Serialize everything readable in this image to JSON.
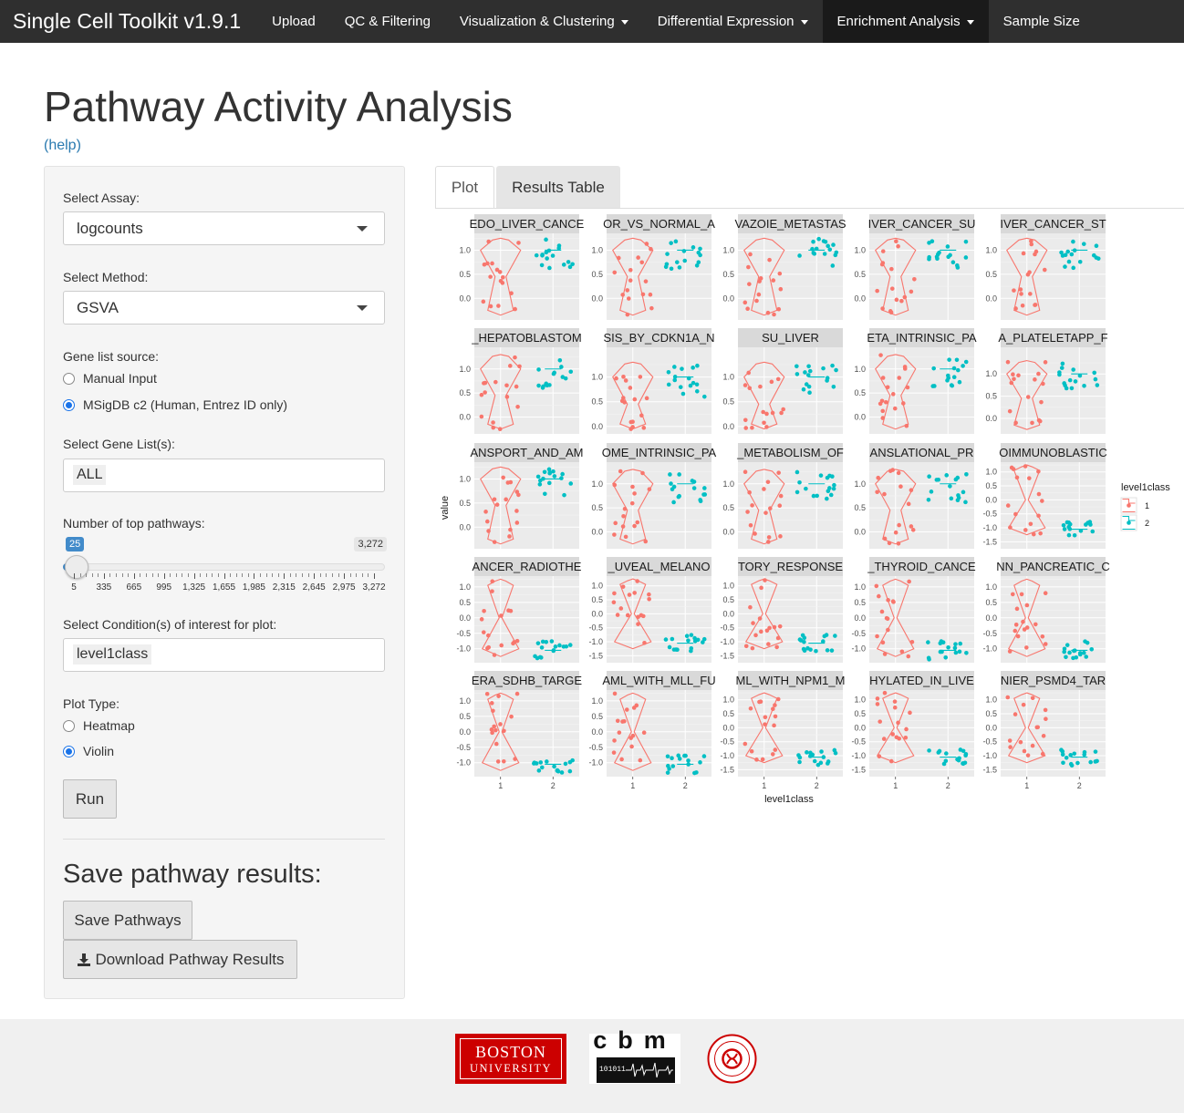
{
  "app": {
    "brand": "Single Cell Toolkit v1.9.1",
    "nav": [
      {
        "label": "Upload",
        "dropdown": false,
        "active": false
      },
      {
        "label": "QC & Filtering",
        "dropdown": false,
        "active": false
      },
      {
        "label": "Visualization & Clustering",
        "dropdown": true,
        "active": false
      },
      {
        "label": "Differential Expression",
        "dropdown": true,
        "active": false
      },
      {
        "label": "Enrichment Analysis",
        "dropdown": true,
        "active": true
      },
      {
        "label": "Sample Size",
        "dropdown": false,
        "active": false
      }
    ]
  },
  "page": {
    "title": "Pathway Activity Analysis",
    "help": "(help)"
  },
  "sidebar": {
    "assay_label": "Select Assay:",
    "assay_value": "logcounts",
    "method_label": "Select Method:",
    "method_value": "GSVA",
    "gene_source_label": "Gene list source:",
    "gene_source_options": [
      "Manual Input",
      "MSigDB c2 (Human, Entrez ID only)"
    ],
    "gene_source_selected": 1,
    "gene_list_label": "Select Gene List(s):",
    "gene_list_value": "ALL",
    "top_label": "Number of top pathways:",
    "slider": {
      "min_badge": "25",
      "max_badge": "3,272",
      "value": 25,
      "min": 5,
      "max": 3272,
      "ticks": [
        "5",
        "335",
        "665",
        "995",
        "1,325",
        "1,655",
        "1,985",
        "2,315",
        "2,645",
        "2,975",
        "3,272"
      ]
    },
    "condition_label": "Select Condition(s) of interest for plot:",
    "condition_value": "level1class",
    "plot_type_label": "Plot Type:",
    "plot_type_options": [
      "Heatmap",
      "Violin"
    ],
    "plot_type_selected": 1,
    "run_button": "Run",
    "save_heading": "Save pathway results:",
    "save_button": "Save Pathways",
    "download_button": "Download Pathway Results"
  },
  "tabs": [
    {
      "label": "Plot",
      "active": true
    },
    {
      "label": "Results Table",
      "active": false
    }
  ],
  "chart_data": {
    "type": "violin",
    "xlabel": "level1class",
    "ylabel": "value",
    "x_categories": [
      "1",
      "2"
    ],
    "legend": {
      "title": "level1class",
      "entries": [
        "1",
        "2"
      ],
      "position": "right"
    },
    "series_colors": {
      "1": "#f8766d",
      "2": "#00bfc4"
    },
    "facets": [
      {
        "strip": "EDO_LIVER_CANCE",
        "yticks": [
          "1.0",
          "0.5",
          "0.0"
        ],
        "ylim": [
          -0.45,
          1.35
        ]
      },
      {
        "strip": "OR_VS_NORMAL_A",
        "yticks": [
          "1.0",
          "0.5",
          "0.0"
        ],
        "ylim": [
          -0.45,
          1.35
        ]
      },
      {
        "strip": "VAZOIE_METASTAS",
        "yticks": [
          "1.0",
          "0.5",
          "0.0"
        ],
        "ylim": [
          -0.45,
          1.35
        ]
      },
      {
        "strip": "IVER_CANCER_SU",
        "yticks": [
          "1.0",
          "0.5",
          "0.0"
        ],
        "ylim": [
          -0.45,
          1.35
        ]
      },
      {
        "strip": "IVER_CANCER_ST",
        "yticks": [
          "1.0",
          "0.5",
          "0.0"
        ],
        "ylim": [
          -0.45,
          1.35
        ]
      },
      {
        "strip": "_HEPATOBLASTOM",
        "yticks": [
          "1.0",
          "0.5",
          "0.0"
        ],
        "ylim": [
          -0.35,
          1.45
        ]
      },
      {
        "strip": "SIS_BY_CDKN1A_N",
        "yticks": [
          "1.0",
          "0.5",
          "0.0"
        ],
        "ylim": [
          -0.15,
          1.6
        ]
      },
      {
        "strip": "SU_LIVER",
        "yticks": [
          "1.0",
          "0.5",
          "0.0"
        ],
        "ylim": [
          -0.15,
          1.6
        ]
      },
      {
        "strip": "ETA_INTRINSIC_PA",
        "yticks": [
          "1.0",
          "0.5",
          "0.0"
        ],
        "ylim": [
          -0.35,
          1.45
        ]
      },
      {
        "strip": "A_PLATELETAPP_F",
        "yticks": [
          "1.0",
          "0.5",
          "0.0"
        ],
        "ylim": [
          -0.35,
          1.6
        ]
      },
      {
        "strip": "ANSPORT_AND_AM",
        "yticks": [
          "1.0",
          "0.5",
          "0.0"
        ],
        "ylim": [
          -0.45,
          1.35
        ]
      },
      {
        "strip": "OME_INTRINSIC_PA",
        "yticks": [
          "1.0",
          "0.5",
          "0.0"
        ],
        "ylim": [
          -0.35,
          1.45
        ]
      },
      {
        "strip": "_METABOLISM_OF",
        "yticks": [
          "1.0",
          "0.5",
          "0.0"
        ],
        "ylim": [
          -0.35,
          1.45
        ]
      },
      {
        "strip": "ANSLATIONAL_PR",
        "yticks": [
          "1.0",
          "0.5",
          "0.0"
        ],
        "ylim": [
          -0.35,
          1.45
        ]
      },
      {
        "strip": "OIMMUNOBLASTIC",
        "yticks": [
          "1.0",
          "0.5",
          "0.0",
          "-0.5",
          "-1.0",
          "-1.5"
        ],
        "ylim": [
          -1.75,
          1.35
        ]
      },
      {
        "strip": "ANCER_RADIOTHE",
        "yticks": [
          "1.0",
          "0.5",
          "0.0",
          "-0.5",
          "-1.0"
        ],
        "ylim": [
          -1.45,
          1.35
        ]
      },
      {
        "strip": "_UVEAL_MELANO",
        "yticks": [
          "1.0",
          "0.5",
          "0.0",
          "-0.5",
          "-1.0",
          "-1.5"
        ],
        "ylim": [
          -1.75,
          1.35
        ]
      },
      {
        "strip": "TORY_RESPONSE",
        "yticks": [
          "1.0",
          "0.5",
          "0.0",
          "-0.5",
          "-1.0",
          "-1.5"
        ],
        "ylim": [
          -1.75,
          1.35
        ]
      },
      {
        "strip": "_THYROID_CANCE",
        "yticks": [
          "1.0",
          "0.5",
          "0.0",
          "-0.5",
          "-1.0"
        ],
        "ylim": [
          -1.45,
          1.35
        ]
      },
      {
        "strip": "NN_PANCREATIC_C",
        "yticks": [
          "1.0",
          "0.5",
          "0.0",
          "-0.5",
          "-1.0"
        ],
        "ylim": [
          -1.45,
          1.35
        ]
      },
      {
        "strip": "ERA_SDHB_TARGE",
        "yticks": [
          "1.0",
          "0.5",
          "0.0",
          "-0.5",
          "-1.0"
        ],
        "ylim": [
          -1.45,
          1.35
        ]
      },
      {
        "strip": "AML_WITH_MLL_FU",
        "yticks": [
          "1.0",
          "0.5",
          "0.0",
          "-0.5",
          "-1.0"
        ],
        "ylim": [
          -1.45,
          1.35
        ]
      },
      {
        "strip": "ML_WITH_NPM1_M",
        "yticks": [
          "1.0",
          "0.5",
          "0.0",
          "-0.5",
          "-1.0",
          "-1.5"
        ],
        "ylim": [
          -1.75,
          1.35
        ]
      },
      {
        "strip": "HYLATED_IN_LIVE",
        "yticks": [
          "1.0",
          "0.5",
          "0.0",
          "-0.5",
          "-1.0",
          "-1.5"
        ],
        "ylim": [
          -1.75,
          1.35
        ]
      },
      {
        "strip": "NIER_PSMD4_TAR",
        "yticks": [
          "1.0",
          "0.5",
          "0.0",
          "-0.5",
          "-1.0",
          "-1.5"
        ],
        "ylim": [
          -1.75,
          1.35
        ]
      }
    ]
  },
  "footer": {
    "logos": [
      {
        "name": "boston-university-logo",
        "text": [
          "BOSTON",
          "UNIVERSITY"
        ]
      },
      {
        "name": "cbm-logo",
        "text": [
          "cbm",
          "101011"
        ]
      },
      {
        "name": "bu-seal-logo"
      }
    ]
  }
}
